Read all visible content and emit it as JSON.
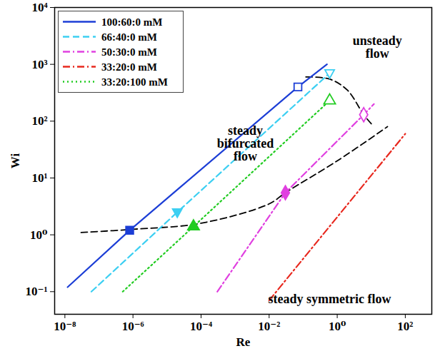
{
  "chart_data": {
    "type": "line",
    "log": true,
    "xlabel": "Re",
    "ylabel": "Wi",
    "xlim": [
      5e-09,
      600
    ],
    "ylim": [
      0.04,
      10000
    ],
    "xticks": [
      {
        "value": 1e-08,
        "label": "10⁻⁸"
      },
      {
        "value": 1e-06,
        "label": "10⁻⁶"
      },
      {
        "value": 0.0001,
        "label": "10⁻⁴"
      },
      {
        "value": 0.01,
        "label": "10⁻²"
      },
      {
        "value": 1,
        "label": "10⁰"
      },
      {
        "value": 100,
        "label": "10²"
      }
    ],
    "yticks": [
      {
        "value": 0.1,
        "label": "10⁻¹"
      },
      {
        "value": 1,
        "label": "10⁰"
      },
      {
        "value": 10,
        "label": "10¹"
      },
      {
        "value": 100,
        "label": "10²"
      },
      {
        "value": 1000,
        "label": "10³"
      },
      {
        "value": 10000,
        "label": "10⁴"
      }
    ],
    "legend": "top-left",
    "series": [
      {
        "name": "100:60:0 mM",
        "color": "#1c3ed6",
        "line_style": "solid",
        "marker": "square",
        "x": [
          1.2e-08,
          8e-07,
          0.07,
          0.5
        ],
        "values": [
          0.12,
          1.2,
          400,
          1000
        ],
        "transitions": {
          "x": [
            8e-07,
            0.07
          ],
          "values": [
            1.2,
            400
          ],
          "filled": [
            true,
            false
          ]
        }
      },
      {
        "name": "66:40:0 mM",
        "color": "#3ccff2",
        "line_style": "dashed",
        "marker": "triangle-down",
        "x": [
          6e-08,
          2e-05,
          0.6
        ],
        "values": [
          0.1,
          2.5,
          700
        ],
        "transitions": {
          "x": [
            2e-05,
            0.6
          ],
          "values": [
            2.5,
            700
          ],
          "filled": [
            true,
            false
          ]
        }
      },
      {
        "name": "50:30:0 mM",
        "color": "#e040e0",
        "line_style": "dash-dot",
        "marker": "diamond",
        "x": [
          0.0003,
          0.03,
          6,
          12
        ],
        "values": [
          0.1,
          5.5,
          130,
          200
        ],
        "transitions": {
          "x": [
            0.03,
            6
          ],
          "values": [
            5.5,
            130
          ],
          "filled": [
            true,
            false
          ]
        }
      },
      {
        "name": "33:20:0 mM",
        "color": "#e8281e",
        "line_style": "dash-dot",
        "x": [
          0.01,
          100
        ],
        "values": [
          0.07,
          60
        ]
      },
      {
        "name": "33:20:100 mM",
        "color": "#22cc22",
        "line_style": "dotted",
        "marker": "triangle",
        "x": [
          5e-07,
          6e-05,
          0.6
        ],
        "values": [
          0.1,
          1.4,
          230
        ],
        "transitions": {
          "x": [
            6e-05,
            0.6
          ],
          "values": [
            1.4,
            230
          ],
          "filled": [
            true,
            false
          ]
        }
      }
    ],
    "boundaries": [
      {
        "color": "#000000",
        "line_style": "dashed",
        "x": [
          3e-08,
          1e-06,
          0.0001,
          0.01,
          0.03,
          1,
          30
        ],
        "values": [
          1.1,
          1.25,
          1.6,
          3.5,
          5.5,
          20,
          80
        ]
      },
      {
        "color": "#000000",
        "line_style": "dashed",
        "x": [
          0.12,
          0.6,
          2,
          6,
          10
        ],
        "values": [
          600,
          550,
          350,
          130,
          90
        ]
      }
    ],
    "annotations": [
      {
        "text": "unsteady flow",
        "x": 15,
        "y": 2000
      },
      {
        "text": "steady bifurcated flow",
        "x": 0.002,
        "y": 40
      },
      {
        "text": "steady symmetric flow",
        "x": 0.6,
        "y": 0.075
      }
    ]
  }
}
